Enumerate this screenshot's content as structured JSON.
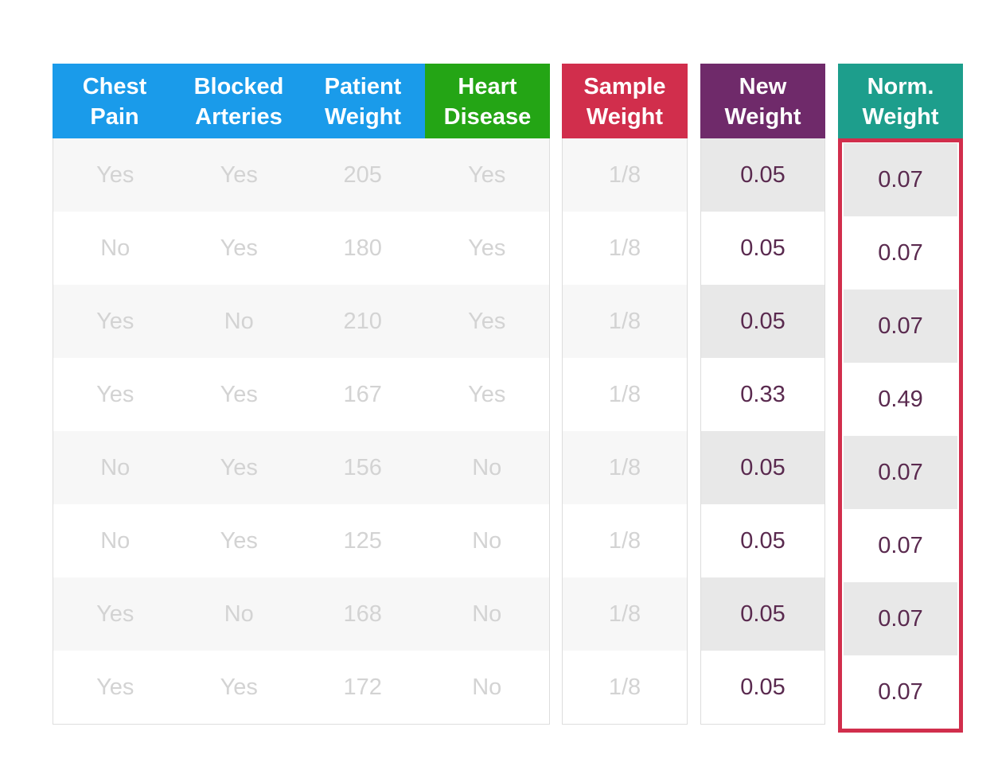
{
  "colors": {
    "blue_header": "#1a9bea",
    "green_header": "#24a515",
    "sample_weight_header": "#d12e4c",
    "new_weight_header": "#6f2a6a",
    "norm_weight_header": "#1d9e8c",
    "highlight_border": "#d12e4c"
  },
  "headers": {
    "chest_pain": [
      "Chest",
      "Pain"
    ],
    "blocked_arteries": [
      "Blocked",
      "Arteries"
    ],
    "patient_weight": [
      "Patient",
      "Weight"
    ],
    "heart_disease": [
      "Heart",
      "Disease"
    ],
    "sample_weight": [
      "Sample",
      "Weight"
    ],
    "new_weight": [
      "New",
      "Weight"
    ],
    "norm_weight": [
      "Norm.",
      "Weight"
    ]
  },
  "rows": [
    {
      "chest_pain": "Yes",
      "blocked_arteries": "Yes",
      "patient_weight": "205",
      "heart_disease": "Yes",
      "sample_weight": "1/8",
      "new_weight": "0.05",
      "norm_weight": "0.07"
    },
    {
      "chest_pain": "No",
      "blocked_arteries": "Yes",
      "patient_weight": "180",
      "heart_disease": "Yes",
      "sample_weight": "1/8",
      "new_weight": "0.05",
      "norm_weight": "0.07"
    },
    {
      "chest_pain": "Yes",
      "blocked_arteries": "No",
      "patient_weight": "210",
      "heart_disease": "Yes",
      "sample_weight": "1/8",
      "new_weight": "0.05",
      "norm_weight": "0.07"
    },
    {
      "chest_pain": "Yes",
      "blocked_arteries": "Yes",
      "patient_weight": "167",
      "heart_disease": "Yes",
      "sample_weight": "1/8",
      "new_weight": "0.33",
      "norm_weight": "0.49"
    },
    {
      "chest_pain": "No",
      "blocked_arteries": "Yes",
      "patient_weight": "156",
      "heart_disease": "No",
      "sample_weight": "1/8",
      "new_weight": "0.05",
      "norm_weight": "0.07"
    },
    {
      "chest_pain": "No",
      "blocked_arteries": "Yes",
      "patient_weight": "125",
      "heart_disease": "No",
      "sample_weight": "1/8",
      "new_weight": "0.05",
      "norm_weight": "0.07"
    },
    {
      "chest_pain": "Yes",
      "blocked_arteries": "No",
      "patient_weight": "168",
      "heart_disease": "No",
      "sample_weight": "1/8",
      "new_weight": "0.05",
      "norm_weight": "0.07"
    },
    {
      "chest_pain": "Yes",
      "blocked_arteries": "Yes",
      "patient_weight": "172",
      "heart_disease": "No",
      "sample_weight": "1/8",
      "new_weight": "0.05",
      "norm_weight": "0.07"
    }
  ]
}
